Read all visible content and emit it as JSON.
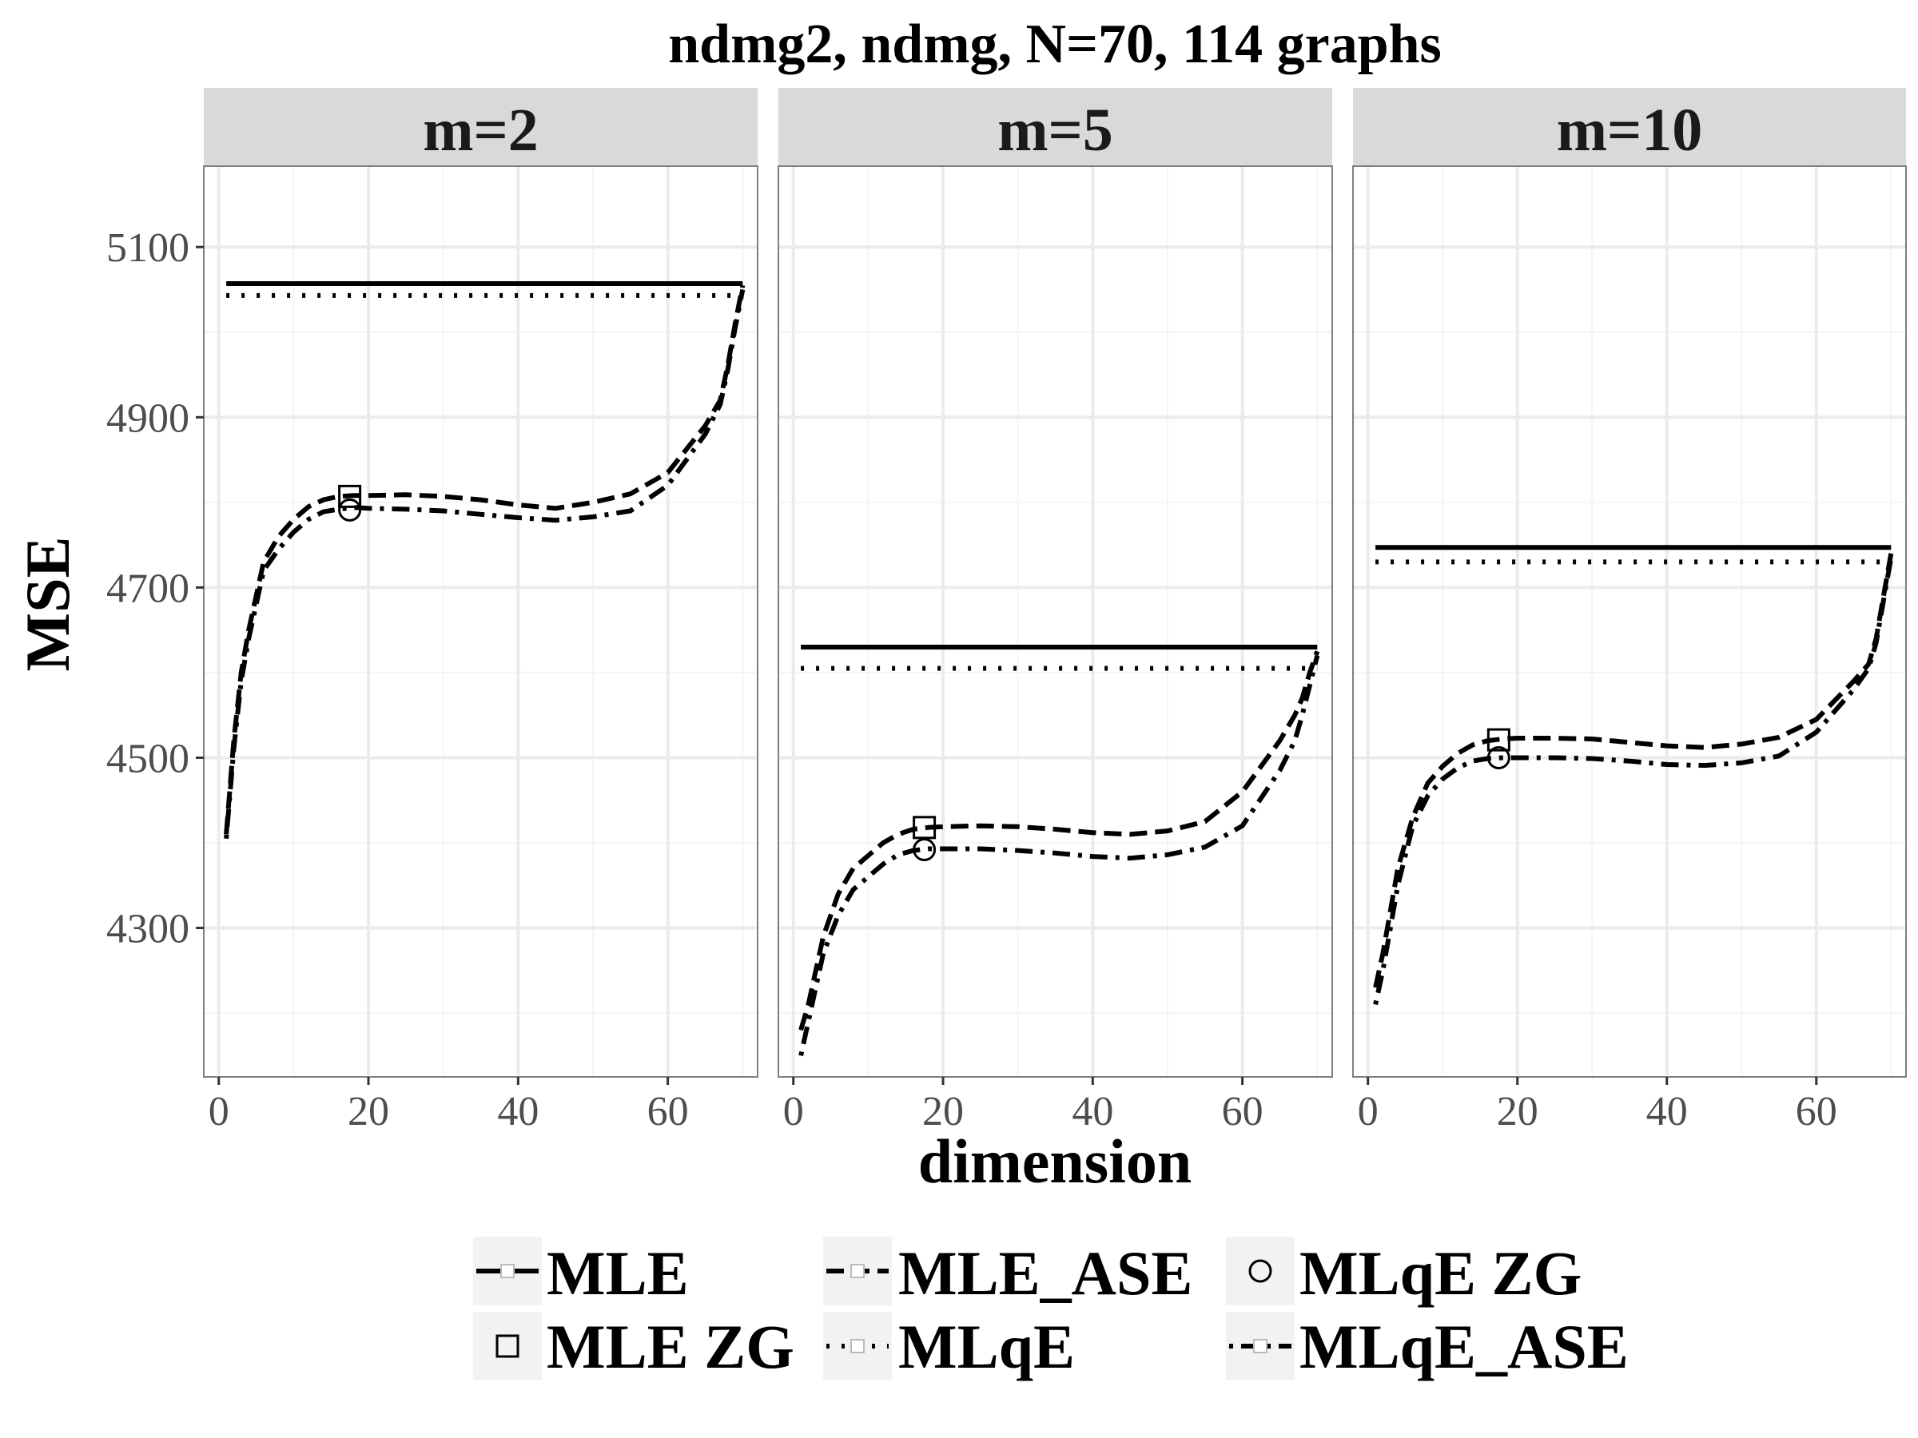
{
  "chart_data": {
    "type": "line",
    "title": "ndmg2, ndmg, N=70, 114 graphs",
    "xlabel": "dimension",
    "ylabel": "MSE",
    "xlim": [
      0,
      70
    ],
    "ylim": [
      4125,
      5195
    ],
    "x_ticks": [
      0,
      20,
      40,
      60
    ],
    "y_ticks": [
      4300,
      4500,
      4700,
      4900,
      5100
    ],
    "grid": true,
    "legend_position": "bottom",
    "legend": [
      "MLE",
      "MLE_ASE",
      "MLqE ZG",
      "MLE ZG",
      "MLqE",
      "MLqE_ASE"
    ],
    "panels": [
      {
        "label": "m=2",
        "series": [
          {
            "name": "MLE",
            "style": "solid",
            "x": [
              1,
              70
            ],
            "y": [
              5057,
              5057
            ]
          },
          {
            "name": "MLqE",
            "style": "dotted",
            "x": [
              1,
              70
            ],
            "y": [
              5043,
              5043
            ]
          },
          {
            "name": "MLE_ASE",
            "style": "dashed",
            "x": [
              1,
              2,
              3,
              4,
              6,
              8,
              10,
              12,
              14,
              16,
              18,
              20,
              25,
              30,
              35,
              40,
              45,
              50,
              55,
              60,
              65,
              67,
              68,
              69,
              70
            ],
            "y": [
              4410,
              4520,
              4600,
              4650,
              4730,
              4760,
              4780,
              4795,
              4803,
              4807,
              4808,
              4808,
              4809,
              4807,
              4803,
              4797,
              4793,
              4800,
              4810,
              4835,
              4890,
              4920,
              4960,
              5010,
              5055
            ]
          },
          {
            "name": "MLqE_ASE",
            "style": "dashdot",
            "x": [
              1,
              2,
              3,
              4,
              6,
              8,
              10,
              12,
              14,
              16,
              18,
              20,
              25,
              30,
              35,
              40,
              45,
              50,
              55,
              60,
              65,
              67,
              68,
              69,
              70
            ],
            "y": [
              4405,
              4510,
              4590,
              4640,
              4720,
              4745,
              4765,
              4780,
              4789,
              4792,
              4794,
              4793,
              4792,
              4790,
              4786,
              4782,
              4779,
              4783,
              4790,
              4820,
              4880,
              4915,
              4955,
              5005,
              5050
            ]
          }
        ],
        "points": [
          {
            "name": "MLE ZG",
            "x": 17.5,
            "y": 4807
          },
          {
            "name": "MLqE ZG",
            "x": 17.5,
            "y": 4791
          }
        ]
      },
      {
        "label": "m=5",
        "series": [
          {
            "name": "MLE",
            "style": "solid",
            "x": [
              1,
              70
            ],
            "y": [
              4630,
              4630
            ]
          },
          {
            "name": "MLqE",
            "style": "dotted",
            "x": [
              1,
              70
            ],
            "y": [
              4605,
              4605
            ]
          },
          {
            "name": "MLE_ASE",
            "style": "dashed",
            "x": [
              1,
              2,
              3,
              4,
              6,
              8,
              10,
              12,
              14,
              16,
              18,
              20,
              25,
              30,
              35,
              40,
              45,
              50,
              55,
              60,
              65,
              67,
              68,
              69,
              70
            ],
            "y": [
              4180,
              4210,
              4250,
              4290,
              4340,
              4370,
              4385,
              4400,
              4410,
              4416,
              4418,
              4419,
              4420,
              4419,
              4416,
              4412,
              4410,
              4414,
              4425,
              4460,
              4520,
              4550,
              4570,
              4600,
              4625
            ]
          },
          {
            "name": "MLqE_ASE",
            "style": "dashdot",
            "x": [
              1,
              2,
              3,
              4,
              6,
              8,
              10,
              12,
              14,
              16,
              18,
              20,
              25,
              30,
              35,
              40,
              45,
              50,
              55,
              60,
              65,
              67,
              68,
              69,
              70
            ],
            "y": [
              4150,
              4190,
              4230,
              4270,
              4315,
              4345,
              4360,
              4375,
              4386,
              4391,
              4393,
              4393,
              4393,
              4391,
              4388,
              4384,
              4382,
              4386,
              4395,
              4420,
              4485,
              4520,
              4550,
              4585,
              4620
            ]
          }
        ],
        "points": [
          {
            "name": "MLE ZG",
            "x": 17.5,
            "y": 4418
          },
          {
            "name": "MLqE ZG",
            "x": 17.5,
            "y": 4392
          }
        ]
      },
      {
        "label": "m=10",
        "series": [
          {
            "name": "MLE",
            "style": "solid",
            "x": [
              1,
              70
            ],
            "y": [
              4747,
              4747
            ]
          },
          {
            "name": "MLqE",
            "style": "dotted",
            "x": [
              1,
              70
            ],
            "y": [
              4730,
              4730
            ]
          },
          {
            "name": "MLE_ASE",
            "style": "dashed",
            "x": [
              1,
              2,
              3,
              4,
              6,
              8,
              10,
              12,
              14,
              16,
              18,
              20,
              25,
              30,
              35,
              40,
              45,
              50,
              55,
              60,
              65,
              67,
              68,
              69,
              70
            ],
            "y": [
              4230,
              4270,
              4320,
              4370,
              4430,
              4470,
              4490,
              4505,
              4515,
              4520,
              4522,
              4523,
              4523,
              4522,
              4518,
              4514,
              4512,
              4516,
              4524,
              4545,
              4590,
              4610,
              4640,
              4690,
              4740
            ]
          },
          {
            "name": "MLqE_ASE",
            "style": "dashdot",
            "x": [
              1,
              2,
              3,
              4,
              6,
              8,
              10,
              12,
              14,
              16,
              18,
              20,
              25,
              30,
              35,
              40,
              45,
              50,
              55,
              60,
              65,
              67,
              68,
              69,
              70
            ],
            "y": [
              4210,
              4250,
              4300,
              4350,
              4420,
              4455,
              4475,
              4488,
              4496,
              4499,
              4500,
              4500,
              4500,
              4499,
              4496,
              4492,
              4491,
              4494,
              4502,
              4530,
              4580,
              4605,
              4635,
              4685,
              4735
            ]
          }
        ],
        "points": [
          {
            "name": "MLE ZG",
            "x": 17.5,
            "y": 4521
          },
          {
            "name": "MLqE ZG",
            "x": 17.5,
            "y": 4500
          }
        ]
      }
    ],
    "colors": {
      "line": "#000000",
      "strip_fill": "#d9d9d9",
      "panel_border": "#7f7f7f",
      "grid": "#ebebeb",
      "tick_text": "#4d4d4d",
      "legend_key_fill": "#f2f2f2"
    }
  }
}
